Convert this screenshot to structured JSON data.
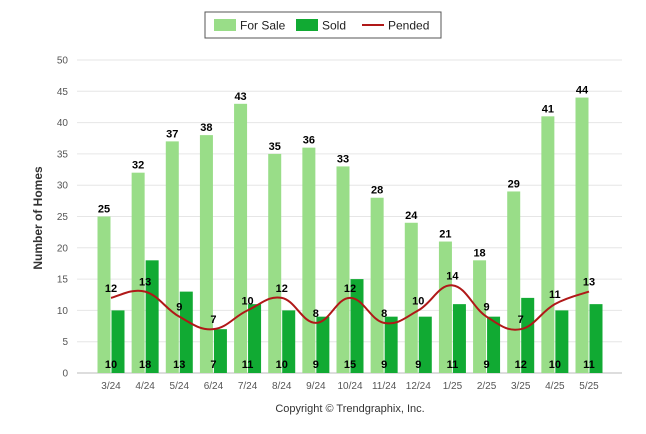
{
  "chart_data": {
    "type": "bar",
    "ylabel": "Number of Homes",
    "xlabel": "",
    "ylim": [
      0,
      50
    ],
    "yticks": [
      0,
      5,
      10,
      15,
      20,
      25,
      30,
      35,
      40,
      45,
      50
    ],
    "grid": true,
    "legend": "top-center",
    "categories": [
      "3/24",
      "4/24",
      "5/24",
      "6/24",
      "7/24",
      "8/24",
      "9/24",
      "10/24",
      "11/24",
      "12/24",
      "1/25",
      "2/25",
      "3/25",
      "4/25",
      "5/25"
    ],
    "series": [
      {
        "name": "For Sale",
        "type": "bar",
        "color": "#99dd88",
        "values": [
          25,
          32,
          37,
          38,
          43,
          35,
          36,
          33,
          28,
          24,
          21,
          18,
          29,
          41,
          44
        ]
      },
      {
        "name": "Sold",
        "type": "bar",
        "color": "#11aa33",
        "values": [
          10,
          18,
          13,
          7,
          11,
          10,
          9,
          15,
          9,
          9,
          11,
          9,
          12,
          10,
          11
        ]
      },
      {
        "name": "Pended",
        "type": "line",
        "color": "#b01818",
        "values": [
          12,
          13,
          9,
          7,
          10,
          12,
          8,
          12,
          8,
          10,
          14,
          9,
          7,
          11,
          13
        ]
      }
    ],
    "footer": "Copyright © Trendgraphix, Inc."
  }
}
